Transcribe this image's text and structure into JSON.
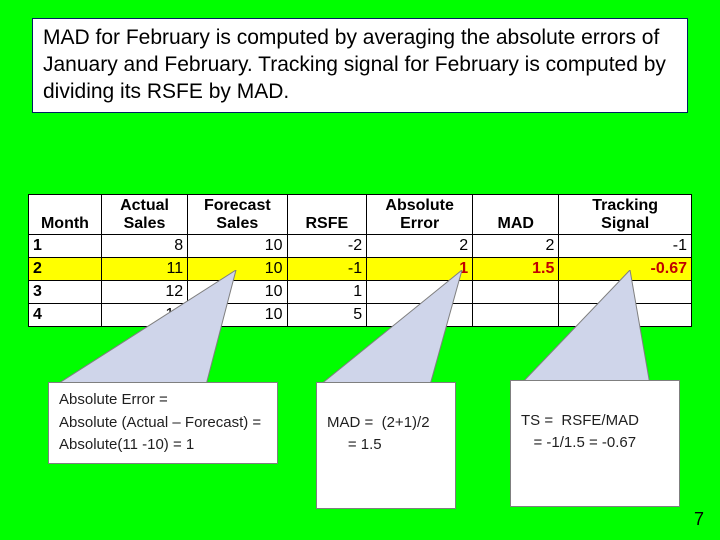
{
  "colors": {
    "slide_bg": "#00ff00",
    "box_bg": "#ffffff",
    "box_border": "#002060",
    "table_border": "#000000",
    "highlight_bg": "#ffff00",
    "highlight_text": "#c00000",
    "callout_border": "#7f7f7f",
    "wedge_fill": "#cfd5ea",
    "wedge_stroke": "#7f7f7f"
  },
  "explain": "MAD for February is computed by averaging the absolute errors of January and February.  Tracking signal for February is computed by dividing its RSFE by MAD.",
  "table": {
    "headers": [
      "Month",
      "Actual Sales",
      "Forecast Sales",
      "RSFE",
      "Absolute Error",
      "MAD",
      "Tracking Signal"
    ],
    "col_widths_pct": [
      11,
      13,
      15,
      12,
      16,
      13,
      20
    ],
    "rows": [
      {
        "month": "1",
        "actual": "8",
        "forecast": "10",
        "rsfe": "-2",
        "abserr": "2",
        "mad": "2",
        "ts": "-1",
        "highlight": false
      },
      {
        "month": "2",
        "actual": "11",
        "forecast": "10",
        "rsfe": "-1",
        "abserr": "1",
        "mad": "1.5",
        "ts": "-0.67",
        "highlight": true
      },
      {
        "month": "3",
        "actual": "12",
        "forecast": "10",
        "rsfe": "1",
        "abserr": "",
        "mad": "",
        "ts": "",
        "highlight": false
      },
      {
        "month": "4",
        "actual": "14",
        "forecast": "10",
        "rsfe": "5",
        "abserr": "",
        "mad": "",
        "ts": "",
        "highlight": false
      }
    ]
  },
  "callouts": {
    "abserr": {
      "line1": "Absolute Error =",
      "line2": "Absolute (Actual – Forecast) =",
      "line3": "Absolute(11 -10) = 1"
    },
    "mad": {
      "line1": "MAD =  (2+1)/2",
      "line2": "     = 1.5"
    },
    "ts": {
      "line1": "TS =  RSFE/MAD",
      "line2": "   = -1/1.5 = -0.67"
    }
  },
  "page_number": "7"
}
